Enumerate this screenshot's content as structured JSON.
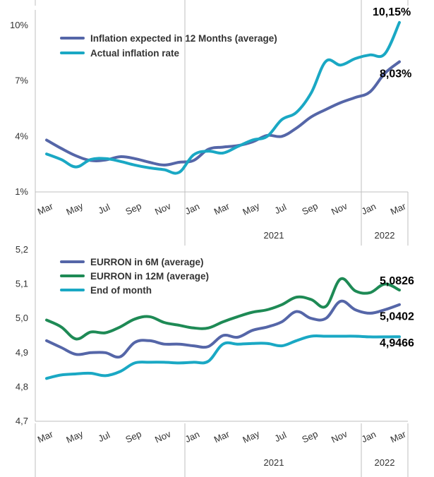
{
  "chart_data": [
    {
      "type": "line",
      "title": "",
      "xlabel": "",
      "ylabel": "",
      "ylim": [
        1,
        10.6
      ],
      "y_ticks": [
        "1%",
        "4%",
        "7%",
        "10%"
      ],
      "y_tick_values": [
        1,
        4,
        7,
        10
      ],
      "x": [
        "Mar",
        "Apr",
        "May",
        "Jun",
        "Jul",
        "Aug",
        "Sep",
        "Oct",
        "Nov",
        "Dec",
        "Jan",
        "Feb",
        "Mar",
        "Apr",
        "May",
        "Jun",
        "Jul",
        "Aug",
        "Sep",
        "Oct",
        "Nov",
        "Dec",
        "Jan",
        "Feb",
        "Mar"
      ],
      "x_tick_labels": [
        "Mar",
        "May",
        "Jul",
        "Sep",
        "Nov",
        "Jan",
        "Mar",
        "May",
        "Jul",
        "Sep",
        "Nov",
        "Jan",
        "Mar"
      ],
      "year_labels": [
        "2021",
        "2022"
      ],
      "grid": false,
      "legend_position": "top-left",
      "series": [
        {
          "name": "Inflation expected in 12 Months (average)",
          "color": "#5566a8",
          "values": [
            3.8,
            3.35,
            2.95,
            2.7,
            2.72,
            2.9,
            2.8,
            2.6,
            2.45,
            2.6,
            2.7,
            3.3,
            3.42,
            3.5,
            3.7,
            4.05,
            4.0,
            4.45,
            5.05,
            5.45,
            5.82,
            6.1,
            6.4,
            7.4,
            8.03
          ]
        },
        {
          "name": "Actual inflation rate",
          "color": "#1aa8c4",
          "values": [
            3.05,
            2.75,
            2.35,
            2.75,
            2.8,
            2.65,
            2.45,
            2.3,
            2.2,
            2.05,
            3.0,
            3.2,
            3.1,
            3.45,
            3.8,
            4.0,
            4.9,
            5.3,
            6.35,
            8.05,
            7.85,
            8.2,
            8.4,
            8.45,
            10.15
          ]
        }
      ],
      "annotations": [
        "10,15%",
        "8,03%"
      ]
    },
    {
      "type": "line",
      "title": "",
      "xlabel": "",
      "ylabel": "",
      "ylim": [
        4.7,
        5.2
      ],
      "y_ticks": [
        "4,7",
        "4,8",
        "4,9",
        "5,0",
        "5,1",
        "5,2"
      ],
      "y_tick_values": [
        4.7,
        4.8,
        4.9,
        5.0,
        5.1,
        5.2
      ],
      "x": [
        "Mar",
        "Apr",
        "May",
        "Jun",
        "Jul",
        "Aug",
        "Sep",
        "Oct",
        "Nov",
        "Dec",
        "Jan",
        "Feb",
        "Mar",
        "Apr",
        "May",
        "Jun",
        "Jul",
        "Aug",
        "Sep",
        "Oct",
        "Nov",
        "Dec",
        "Jan",
        "Feb",
        "Mar"
      ],
      "x_tick_labels": [
        "Mar",
        "May",
        "Jul",
        "Sep",
        "Nov",
        "Jan",
        "Mar",
        "May",
        "Jul",
        "Sep",
        "Nov",
        "Jan",
        "Mar"
      ],
      "year_labels": [
        "2021",
        "2022"
      ],
      "grid": false,
      "legend_position": "top-left",
      "series": [
        {
          "name": "EURRON in 6M (average)",
          "color": "#5566a8",
          "values": [
            4.935,
            4.915,
            4.895,
            4.9,
            4.9,
            4.888,
            4.93,
            4.935,
            4.925,
            4.925,
            4.92,
            4.918,
            4.95,
            4.945,
            4.965,
            4.975,
            4.99,
            5.02,
            5.0,
            5.0,
            5.05,
            5.025,
            5.015,
            5.025,
            5.0402
          ]
        },
        {
          "name": "EURRON in 12M (average)",
          "color": "#1e8a55",
          "values": [
            4.995,
            4.975,
            4.94,
            4.96,
            4.958,
            4.975,
            4.998,
            5.005,
            4.988,
            4.98,
            4.972,
            4.972,
            4.99,
            5.005,
            5.018,
            5.025,
            5.04,
            5.062,
            5.055,
            5.035,
            5.115,
            5.08,
            5.075,
            5.1,
            5.0826
          ]
        },
        {
          "name": "End of month",
          "color": "#1aa8c4",
          "values": [
            4.825,
            4.835,
            4.838,
            4.84,
            4.833,
            4.845,
            4.87,
            4.872,
            4.872,
            4.87,
            4.872,
            4.875,
            4.925,
            4.925,
            4.927,
            4.927,
            4.92,
            4.935,
            4.948,
            4.948,
            4.948,
            4.948,
            4.946,
            4.946,
            4.9466
          ]
        }
      ],
      "annotations": [
        "5,0826",
        "5,0402",
        "4,9466"
      ]
    }
  ]
}
